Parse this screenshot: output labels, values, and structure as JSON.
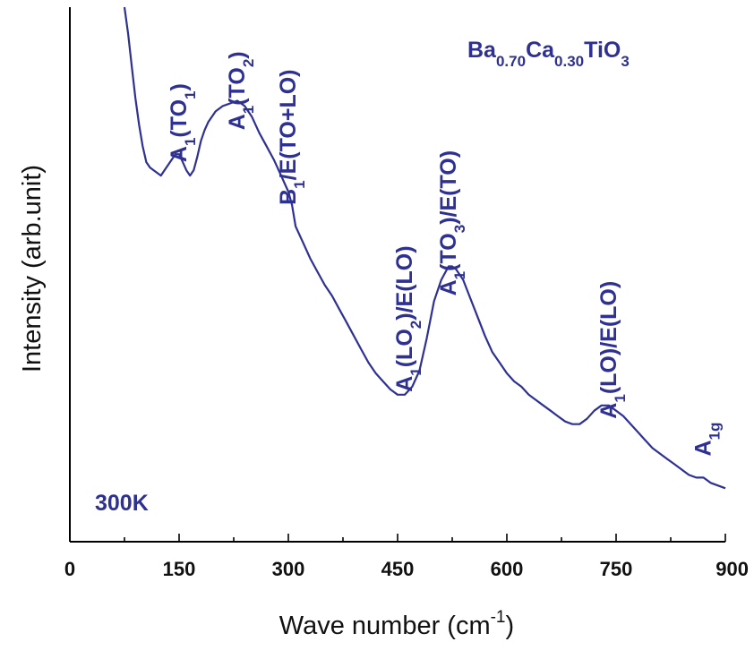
{
  "chart_data": {
    "type": "line",
    "xlabel": {
      "main": "Wave number (cm",
      "sup": "-1",
      "tail": ")"
    },
    "ylabel": "Intensity (arb.unit)",
    "xlim": [
      0,
      900
    ],
    "ylim": [
      0,
      100
    ],
    "x_ticks": [
      "0",
      "150",
      "300",
      "450",
      "600",
      "750",
      "900"
    ],
    "x_tick_values": [
      0,
      150,
      300,
      450,
      600,
      750,
      900
    ],
    "x_minor_ticks": [
      75,
      225,
      375,
      525,
      675,
      825
    ],
    "y_ticks_shown": false,
    "grid": false,
    "line_color": "#2e3192",
    "label_color": "#2e3192",
    "composition": [
      {
        "t": "Ba"
      },
      {
        "t": "0.70",
        "sub": true
      },
      {
        "t": "Ca"
      },
      {
        "t": "0.30",
        "sub": true
      },
      {
        "t": "TiO"
      },
      {
        "t": "3",
        "sub": true
      }
    ],
    "temperature": "300K",
    "peak_labels": [
      {
        "x": 150,
        "y": 71,
        "parts": [
          {
            "t": "A"
          },
          {
            "t": "1",
            "sub": true
          },
          {
            "t": "(TO"
          },
          {
            "t": "1",
            "sub": true
          },
          {
            "t": ")"
          }
        ]
      },
      {
        "x": 230,
        "y": 77,
        "parts": [
          {
            "t": "A"
          },
          {
            "t": "1",
            "sub": true
          },
          {
            "t": "(TO"
          },
          {
            "t": "2",
            "sub": true
          },
          {
            "t": ")"
          }
        ]
      },
      {
        "x": 300,
        "y": 63,
        "parts": [
          {
            "t": "B"
          },
          {
            "t": "1",
            "sub": true
          },
          {
            "t": "/E(TO+LO)"
          }
        ]
      },
      {
        "x": 460,
        "y": 28,
        "parts": [
          {
            "t": "A"
          },
          {
            "t": "1",
            "sub": true
          },
          {
            "t": "(LO"
          },
          {
            "t": "2",
            "sub": true
          },
          {
            "t": ")/E(LO)"
          }
        ]
      },
      {
        "x": 520,
        "y": 46,
        "parts": [
          {
            "t": "A"
          },
          {
            "t": "1",
            "sub": true
          },
          {
            "t": "(TO"
          },
          {
            "t": "3",
            "sub": true
          },
          {
            "t": ")/E(TO)"
          }
        ]
      },
      {
        "x": 740,
        "y": 23,
        "parts": [
          {
            "t": "A"
          },
          {
            "t": "1",
            "sub": true
          },
          {
            "t": "(LO)/E(LO)"
          }
        ]
      },
      {
        "x": 870,
        "y": 16,
        "parts": [
          {
            "t": "A"
          },
          {
            "t": "1g",
            "sub": true
          }
        ]
      }
    ],
    "series": [
      {
        "x": [
          75,
          80,
          85,
          90,
          95,
          100,
          105,
          110,
          115,
          120,
          125,
          130,
          135,
          140,
          145,
          150,
          155,
          160,
          165,
          170,
          175,
          180,
          185,
          190,
          195,
          200,
          210,
          220,
          230,
          240,
          250,
          260,
          270,
          280,
          290,
          295,
          300,
          305,
          310,
          320,
          330,
          340,
          350,
          360,
          370,
          380,
          390,
          400,
          410,
          420,
          430,
          440,
          450,
          460,
          470,
          480,
          490,
          500,
          510,
          520,
          525,
          530,
          540,
          550,
          560,
          570,
          580,
          590,
          600,
          610,
          620,
          630,
          640,
          650,
          660,
          670,
          680,
          690,
          700,
          710,
          720,
          730,
          740,
          750,
          760,
          770,
          780,
          790,
          800,
          810,
          820,
          830,
          840,
          850,
          860,
          870,
          880,
          890,
          900
        ],
        "y": [
          100,
          95,
          89,
          83,
          78,
          74,
          71,
          70,
          69.5,
          69,
          68.5,
          69.5,
          70.5,
          71.5,
          72.5,
          72.5,
          71,
          69.5,
          68.5,
          69.5,
          72,
          75,
          77,
          78.5,
          79.5,
          80.5,
          81.5,
          82,
          82.5,
          81.5,
          79.5,
          76.5,
          74,
          71.5,
          68.5,
          67,
          65.5,
          63,
          59,
          56,
          53,
          50.5,
          48,
          46,
          43.5,
          41,
          38.5,
          36,
          33.5,
          31.5,
          30,
          28.5,
          27.5,
          27.5,
          29,
          32,
          38,
          45,
          49,
          51.5,
          51.5,
          51,
          49,
          45.5,
          42,
          38.5,
          35.5,
          33.5,
          31.5,
          30,
          29,
          27.5,
          26.5,
          25.5,
          24.5,
          23.5,
          22.5,
          22,
          22,
          23,
          24.5,
          25.5,
          25.5,
          24.5,
          23.5,
          22,
          20.5,
          19,
          17.5,
          16.5,
          15.5,
          14.5,
          13.5,
          12.5,
          12,
          12,
          11,
          10.5,
          10
        ]
      }
    ]
  }
}
